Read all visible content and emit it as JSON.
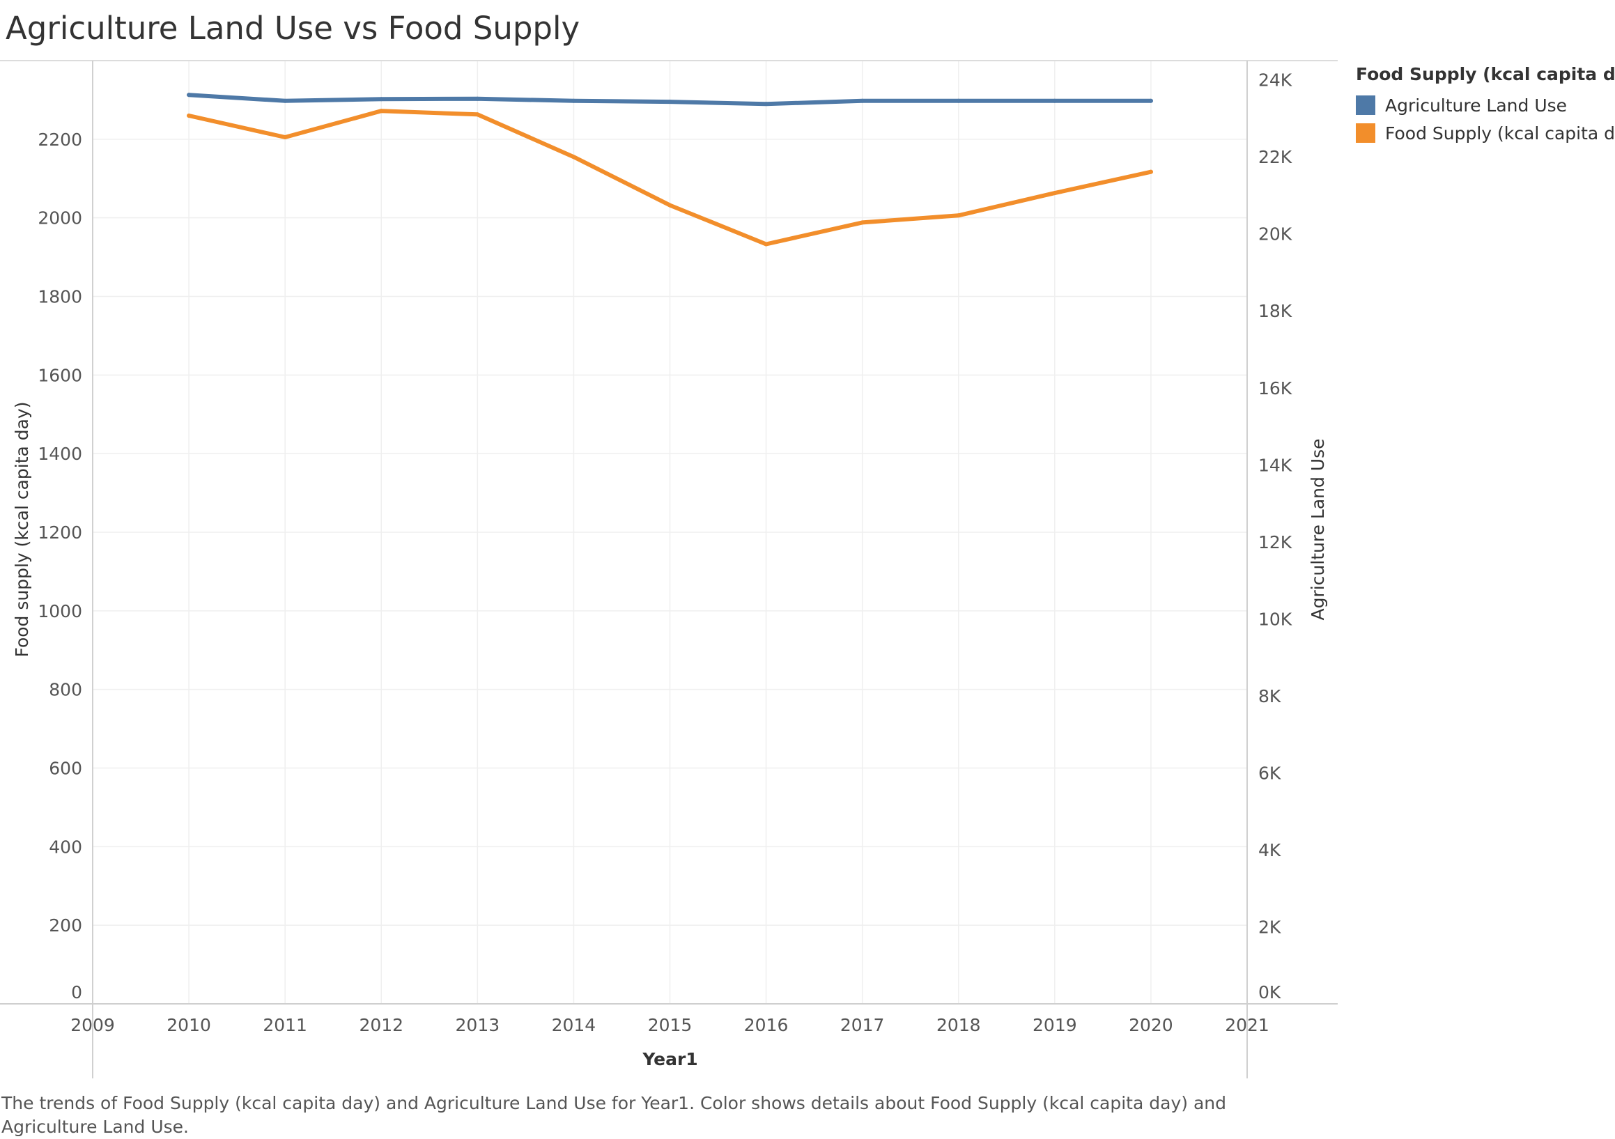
{
  "title": "Agriculture Land Use vs Food Supply",
  "caption": "The trends of Food Supply (kcal capita day) and Agriculture Land Use for Year1.  Color shows details about Food Supply (kcal capita day) and Agriculture Land Use.",
  "legend": {
    "title": "Food Supply (kcal capita day)",
    "items": [
      {
        "label": "Agriculture Land Use",
        "color": "#4e79a7"
      },
      {
        "label": "Food Supply (kcal capita day)",
        "color": "#f28e2b"
      }
    ]
  },
  "chart_data": {
    "type": "line",
    "xlabel": "Year1",
    "ylabel_left": "Food supply (kcal capita day)",
    "ylabel_right": "Agriculture Land Use",
    "x_ticks": [
      "2009",
      "2010",
      "2011",
      "2012",
      "2013",
      "2014",
      "2015",
      "2016",
      "2017",
      "2018",
      "2019",
      "2020",
      "2021"
    ],
    "xlim": [
      2009,
      2021
    ],
    "ylim_left": [
      0,
      2400
    ],
    "ylim_right": [
      0,
      24500
    ],
    "y_ticks_left": [
      "0",
      "200",
      "400",
      "600",
      "800",
      "1000",
      "1200",
      "1400",
      "1600",
      "1800",
      "2000",
      "2200"
    ],
    "y_ticks_right": [
      "0K",
      "2K",
      "4K",
      "6K",
      "8K",
      "10K",
      "12K",
      "14K",
      "16K",
      "18K",
      "20K",
      "22K",
      "24K"
    ],
    "grid": true,
    "legend_position": "top-right",
    "series": [
      {
        "name": "Agriculture Land Use",
        "axis": "right",
        "color": "#4e79a7",
        "x": [
          2010,
          2011,
          2012,
          2013,
          2014,
          2015,
          2016,
          2017,
          2018,
          2019,
          2020
        ],
        "values": [
          23610,
          23455,
          23500,
          23510,
          23455,
          23430,
          23375,
          23455,
          23455,
          23455,
          23455
        ]
      },
      {
        "name": "Food Supply (kcal capita day)",
        "axis": "left",
        "color": "#f28e2b",
        "x": [
          2010,
          2011,
          2012,
          2013,
          2014,
          2015,
          2016,
          2017,
          2018,
          2019,
          2020
        ],
        "values": [
          2260,
          2205,
          2272,
          2263,
          2155,
          2032,
          1933,
          1988,
          2006,
          2063,
          2117
        ]
      }
    ]
  }
}
